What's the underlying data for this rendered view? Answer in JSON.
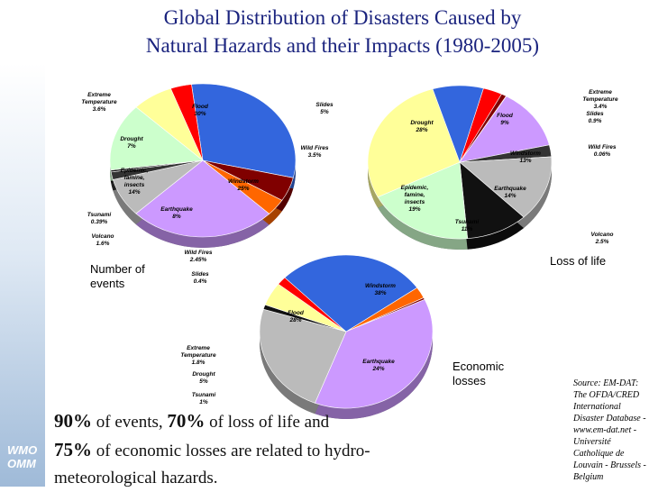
{
  "title_line1": "Global Distribution of Disasters Caused by",
  "title_line2": "Natural Hazards and their Impacts (1980-2005)",
  "logo": {
    "line1": "WMO",
    "line2": "OMM"
  },
  "chart_labels": {
    "events": "Number of events",
    "life": "Loss of life",
    "economic": "Economic losses"
  },
  "summary": {
    "p1": "90%",
    "t1": " of events, ",
    "p2": "70%",
    "t2": " of loss of life and",
    "p3": "75%",
    "t3": " of economic losses are related to hydro-meteorological hazards."
  },
  "source": "Source: EM-DAT: The OFDA/CRED International Disaster Database - www.em-dat.net - Université Catholique de Louvain - Brussels - Belgium",
  "chart_data": [
    {
      "type": "pie",
      "title": "Number of events",
      "slices": [
        {
          "name": "Flood",
          "label": "30%",
          "value": 30,
          "color": "#3366dd"
        },
        {
          "name": "Slides",
          "label": "5%",
          "value": 5,
          "color": "#800000"
        },
        {
          "name": "Wild Fires",
          "label": "3.5%",
          "value": 3.5,
          "color": "#ff6600"
        },
        {
          "name": "Windstorm",
          "label": "25%",
          "value": 25,
          "color": "#cc99ff"
        },
        {
          "name": "Earthquake",
          "label": "8%",
          "value": 8,
          "color": "#bbbbbb"
        },
        {
          "name": "Volcano",
          "label": "1.6%",
          "value": 1.6,
          "color": "#333333"
        },
        {
          "name": "Tsunami",
          "label": "0.39%",
          "value": 0.39,
          "color": "#111111"
        },
        {
          "name": "Epidemic, famine, insects",
          "label": "14%",
          "value": 14,
          "color": "#ccffcc"
        },
        {
          "name": "Drought",
          "label": "7%",
          "value": 7,
          "color": "#ffff99"
        },
        {
          "name": "Extreme Temperature",
          "label": "3.6%",
          "value": 3.6,
          "color": "#ff0000"
        }
      ]
    },
    {
      "type": "pie",
      "title": "Loss of life",
      "slices": [
        {
          "name": "Extreme Temperature",
          "label": "3.4%",
          "value": 3.4,
          "color": "#ff0000"
        },
        {
          "name": "Slides",
          "label": "0.9%",
          "value": 0.9,
          "color": "#800000"
        },
        {
          "name": "Wild Fires",
          "label": "0.06%",
          "value": 0.06,
          "color": "#ff6600"
        },
        {
          "name": "Windstorm",
          "label": "13%",
          "value": 13,
          "color": "#cc99ff"
        },
        {
          "name": "Volcano",
          "label": "2.5%",
          "value": 2.5,
          "color": "#333333"
        },
        {
          "name": "Earthquake",
          "label": "14%",
          "value": 14,
          "color": "#bbbbbb"
        },
        {
          "name": "Tsunami",
          "label": "11%",
          "value": 11,
          "color": "#111111"
        },
        {
          "name": "Epidemic, famine, insects",
          "label": "19%",
          "value": 19,
          "color": "#ccffcc"
        },
        {
          "name": "Drought",
          "label": "28%",
          "value": 28,
          "color": "#ffff99"
        },
        {
          "name": "Flood",
          "label": "9%",
          "value": 9,
          "color": "#3366dd"
        }
      ]
    },
    {
      "type": "pie",
      "title": "Economic losses",
      "slices": [
        {
          "name": "Wild Fires",
          "label": "2.45%",
          "value": 2.45,
          "color": "#ff6600"
        },
        {
          "name": "Slides",
          "label": "0.4%",
          "value": 0.4,
          "color": "#800000"
        },
        {
          "name": "Windstorm",
          "label": "38%",
          "value": 38,
          "color": "#cc99ff"
        },
        {
          "name": "Earthquake",
          "label": "24%",
          "value": 24,
          "color": "#bbbbbb"
        },
        {
          "name": "Tsunami",
          "label": "1%",
          "value": 1,
          "color": "#111111"
        },
        {
          "name": "Drought",
          "label": "5%",
          "value": 5,
          "color": "#ffff99"
        },
        {
          "name": "Extreme Temperature",
          "label": "1.8%",
          "value": 1.8,
          "color": "#ff0000"
        },
        {
          "name": "Flood",
          "label": "28%",
          "value": 28,
          "color": "#3366dd"
        }
      ]
    }
  ]
}
